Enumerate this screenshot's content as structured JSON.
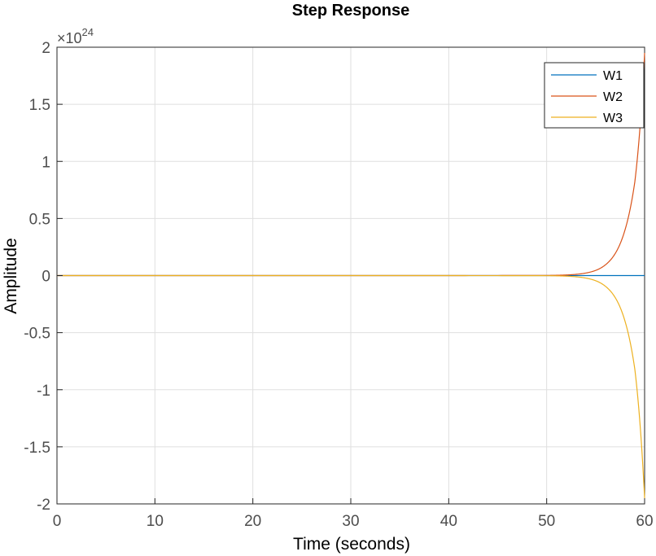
{
  "chart_data": {
    "type": "line",
    "title": "Step Response",
    "xlabel": "Time (seconds)",
    "ylabel": "Amplitude",
    "xlim": [
      0,
      60
    ],
    "ylim": [
      -2,
      2
    ],
    "y_exponent_label": {
      "prefix": "×10",
      "power": "24"
    },
    "xticks": [
      "0",
      "10",
      "20",
      "30",
      "40",
      "50",
      "60"
    ],
    "yticks": [
      "-2",
      "-1.5",
      "-1",
      "-0.5",
      "0",
      "0.5",
      "1",
      "1.5",
      "2"
    ],
    "grid": true,
    "legend_position": "top-right",
    "series": [
      {
        "name": "W1",
        "color": "#0072bd",
        "x": [
          0,
          10,
          20,
          30,
          40,
          50,
          55,
          57,
          58,
          59,
          60
        ],
        "y": [
          0,
          0,
          0,
          0,
          0,
          0,
          0,
          0,
          0,
          0,
          0
        ]
      },
      {
        "name": "W2",
        "color": "#d95319",
        "x": [
          0,
          10,
          20,
          30,
          40,
          50,
          52,
          54,
          55,
          56,
          57,
          58,
          59,
          60
        ],
        "y": [
          0,
          0,
          0,
          0,
          0,
          0.0012,
          0.0052,
          0.022,
          0.045,
          0.094,
          0.193,
          0.4,
          0.82,
          1.95
        ]
      },
      {
        "name": "W3",
        "color": "#edb120",
        "x": [
          0,
          10,
          20,
          30,
          40,
          50,
          52,
          54,
          55,
          56,
          57,
          58,
          59,
          60
        ],
        "y": [
          0,
          0,
          0,
          0,
          0,
          -0.0012,
          -0.0052,
          -0.022,
          -0.045,
          -0.094,
          -0.193,
          -0.4,
          -0.82,
          -1.95
        ]
      }
    ]
  }
}
